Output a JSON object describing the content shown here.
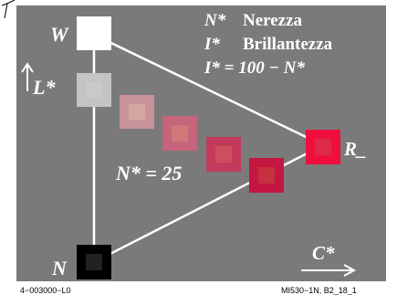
{
  "vertex_labels": {
    "top": "W",
    "bottom": "N",
    "right": "R_"
  },
  "axis_labels": {
    "vertical": "L*",
    "horizontal": "C*"
  },
  "legend": {
    "line1_symbol": "N*",
    "line1_text": "Nerezza",
    "line2_symbol": "I*",
    "line2_text": "Brillantezza",
    "line3": "I* = 100 − N*"
  },
  "series_label": "N* = 25",
  "footer": {
    "left": "4−003000−L0",
    "right": "MI530−1N, B2_18_1"
  },
  "colors": {
    "background": "#7a7a7a",
    "white_vertex": "#ffffff",
    "black_vertex": "#000000",
    "red_vertex": "#ee0f3f",
    "lines": "#ffffff",
    "samples": [
      "#c4c4c4",
      "#c9939c",
      "#c5647a",
      "#c43a5a",
      "#c41640"
    ],
    "sample_inner": [
      "#c9c9c9",
      "#d4a8a0",
      "#cf7878",
      "#cd4f5e",
      "#c6303f"
    ]
  }
}
